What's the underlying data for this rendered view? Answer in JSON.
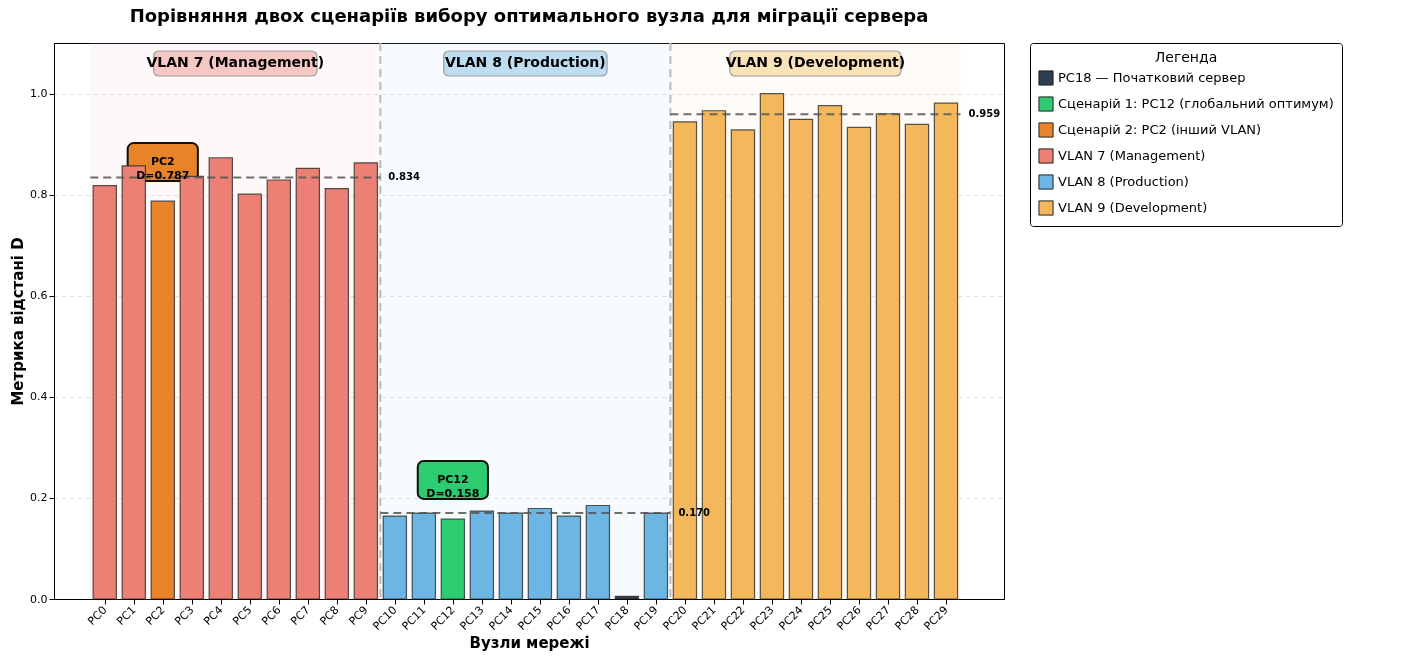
{
  "chart_data": {
    "type": "bar",
    "title": "Порівняння двох сценаріїв вибору оптимального вузла для міграції сервера",
    "xlabel": "Вузли мережі",
    "ylabel": "Метрика відстані D",
    "legend_title": "Легенда",
    "legend": "right",
    "grid": "y",
    "categories": [
      "PC0",
      "PC1",
      "PC2",
      "PC3",
      "PC4",
      "PC5",
      "PC6",
      "PC7",
      "PC8",
      "PC9",
      "PC10",
      "PC11",
      "PC12",
      "PC13",
      "PC14",
      "PC15",
      "PC16",
      "PC17",
      "PC18",
      "PC19",
      "PC20",
      "PC21",
      "PC22",
      "PC23",
      "PC24",
      "PC25",
      "PC26",
      "PC27",
      "PC28",
      "PC29"
    ],
    "ylim": [
      0,
      1.1
    ],
    "yticks": [
      {
        "value": 0,
        "label": "0.0"
      },
      0.2,
      0.4,
      0.6,
      0.8,
      {
        "value": 1,
        "label": "1.0"
      }
    ],
    "series": [
      {
        "name": "PC18 — Початковий сервер",
        "color": "#2c3e50",
        "values": [
          null,
          null,
          null,
          null,
          null,
          null,
          null,
          null,
          null,
          null,
          null,
          null,
          null,
          null,
          null,
          null,
          null,
          null,
          0.005,
          null,
          null,
          null,
          null,
          null,
          null,
          null,
          null,
          null,
          null,
          null
        ]
      },
      {
        "name": "Сценарій 1: PC12 (глобальний оптимум)",
        "color": "#2ecc71",
        "values": [
          null,
          null,
          null,
          null,
          null,
          null,
          null,
          null,
          null,
          null,
          null,
          null,
          0.158,
          null,
          null,
          null,
          null,
          null,
          null,
          null,
          null,
          null,
          null,
          null,
          null,
          null,
          null,
          null,
          null,
          null
        ]
      },
      {
        "name": "Сценарій 2: PC2 (інший VLAN)",
        "color": "#e8832a",
        "values": [
          null,
          null,
          0.787,
          null,
          null,
          null,
          null,
          null,
          null,
          null,
          null,
          null,
          null,
          null,
          null,
          null,
          null,
          null,
          null,
          null,
          null,
          null,
          null,
          null,
          null,
          null,
          null,
          null,
          null,
          null
        ]
      },
      {
        "name": "VLAN 7 (Management)",
        "color": "#ec8074",
        "values": [
          0.818,
          0.857,
          null,
          0.836,
          0.873,
          0.801,
          0.829,
          0.852,
          0.812,
          0.863,
          null,
          null,
          null,
          null,
          null,
          null,
          null,
          null,
          null,
          null,
          null,
          null,
          null,
          null,
          null,
          null,
          null,
          null,
          null,
          null
        ]
      },
      {
        "name": "VLAN 8 (Production)",
        "color": "#6db5e3",
        "values": [
          null,
          null,
          null,
          null,
          null,
          null,
          null,
          null,
          null,
          null,
          0.164,
          0.17,
          null,
          0.174,
          0.17,
          0.179,
          0.164,
          0.185,
          null,
          0.17,
          null,
          null,
          null,
          null,
          null,
          null,
          null,
          null,
          null,
          null
        ]
      },
      {
        "name": "VLAN 9 (Development)",
        "color": "#f4b85c",
        "values": [
          null,
          null,
          null,
          null,
          null,
          null,
          null,
          null,
          null,
          null,
          null,
          null,
          null,
          null,
          null,
          null,
          null,
          null,
          null,
          null,
          0.944,
          0.966,
          0.928,
          1.0,
          0.949,
          0.976,
          0.933,
          0.96,
          0.939,
          0.981
        ]
      }
    ],
    "bands": [
      {
        "axis": "x",
        "from": "PC0",
        "to": "PC9",
        "label": "VLAN 7 (Management)",
        "color": "#f5c6c2"
      },
      {
        "axis": "x",
        "from": "PC10",
        "to": "PC19",
        "label": "VLAN 8 (Production)",
        "color": "#bcdcf1"
      },
      {
        "axis": "x",
        "from": "PC20",
        "to": "PC29",
        "label": "VLAN 9 (Development)",
        "color": "#f9e0b5"
      }
    ],
    "ref_lines": [
      {
        "axis": "y",
        "value": 0.834,
        "label": "0.834",
        "color": "#555555",
        "line_style": "dashed"
      },
      {
        "axis": "y",
        "value": 0.17,
        "label": "0.170",
        "color": "#555555",
        "line_style": "dashed"
      },
      {
        "axis": "y",
        "value": 0.959,
        "label": "0.959",
        "color": "#555555",
        "line_style": "dashed"
      }
    ],
    "annotations": [
      {
        "text": "PC2\nD=0.787",
        "x": "PC2",
        "y": 0.787
      },
      {
        "text": "PC12\nD=0.158",
        "x": "PC12",
        "y": 0.158
      }
    ]
  }
}
